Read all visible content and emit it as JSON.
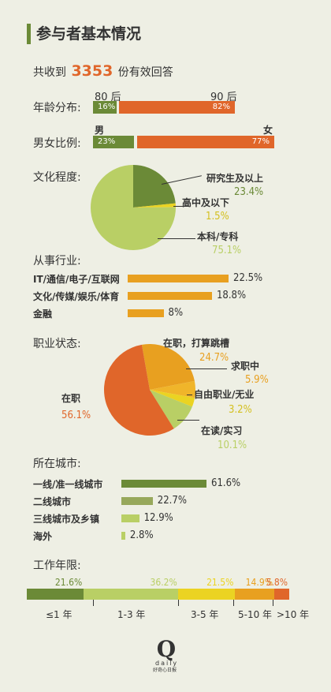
{
  "title": "参与者基本情况",
  "summary": {
    "prefix": "共收到",
    "count": "3353",
    "suffix": "份有效回答"
  },
  "colors": {
    "green": "#6b8a37",
    "orange": "#e0662a",
    "yellow": "#e8a020",
    "light_green": "#b9cf65",
    "gold": "#ebd322",
    "olive": "#97a85b"
  },
  "age": {
    "label": "年龄分布:",
    "left_label": "80 后",
    "right_label": "90 后",
    "left_value": "16%",
    "right_value": "82%"
  },
  "gender": {
    "label": "男女比例:",
    "left_label": "男",
    "right_label": "女",
    "left_value": "23%",
    "right_value": "77%"
  },
  "education": {
    "label": "文化程度:"
  },
  "industry": {
    "label": "从事行业:"
  },
  "status": {
    "label": "职业状态:"
  },
  "city": {
    "label": "所在城市:"
  },
  "years": {
    "label": "工作年限:",
    "ticks": [
      "≤1 年",
      "1-3 年",
      "3-5 年",
      "5-10 年",
      ">10 年"
    ]
  },
  "logo": {
    "letter": "Q",
    "word": "daily",
    "sub": "好奇心日报"
  },
  "chart_data": [
    {
      "type": "bar",
      "title": "年龄分布:",
      "categories": [
        "80 后",
        "90 后"
      ],
      "values": [
        16,
        82
      ]
    },
    {
      "type": "bar",
      "title": "男女比例:",
      "categories": [
        "男",
        "女"
      ],
      "values": [
        23,
        77
      ]
    },
    {
      "type": "pie",
      "title": "文化程度:",
      "categories": [
        "研究生及以上",
        "高中及以下",
        "本科/专科"
      ],
      "values": [
        23.4,
        1.5,
        75.1
      ],
      "labels": [
        "23.4%",
        "1.5%",
        "75.1%"
      ]
    },
    {
      "type": "bar",
      "title": "从事行业:",
      "categories": [
        "IT/通信/电子/互联网",
        "文化/传媒/娱乐/体育",
        "金融"
      ],
      "values": [
        22.5,
        18.8,
        8
      ],
      "labels": [
        "22.5%",
        "18.8%",
        "8%"
      ]
    },
    {
      "type": "pie",
      "title": "职业状态:",
      "categories": [
        "在职，打算跳槽",
        "求职中",
        "自由职业/无业",
        "在读/实习",
        "在职"
      ],
      "values": [
        24.7,
        5.9,
        3.2,
        10.1,
        56.1
      ],
      "labels": [
        "24.7%",
        "5.9%",
        "3.2%",
        "10.1%",
        "56.1%"
      ]
    },
    {
      "type": "bar",
      "title": "所在城市:",
      "categories": [
        "一线/准一线城市",
        "二线城市",
        "三线城市及乡镇",
        "海外"
      ],
      "values": [
        61.6,
        22.7,
        12.9,
        2.8
      ],
      "labels": [
        "61.6%",
        "22.7%",
        "12.9%",
        "2.8%"
      ]
    },
    {
      "type": "bar",
      "title": "工作年限:",
      "categories": [
        "≤1 年",
        "1-3 年",
        "3-5 年",
        "5-10 年",
        ">10 年"
      ],
      "values": [
        21.6,
        36.2,
        21.5,
        14.9,
        5.8
      ],
      "labels": [
        "21.6%",
        "36.2%",
        "21.5%",
        "14.9%",
        "5.8%"
      ]
    }
  ]
}
